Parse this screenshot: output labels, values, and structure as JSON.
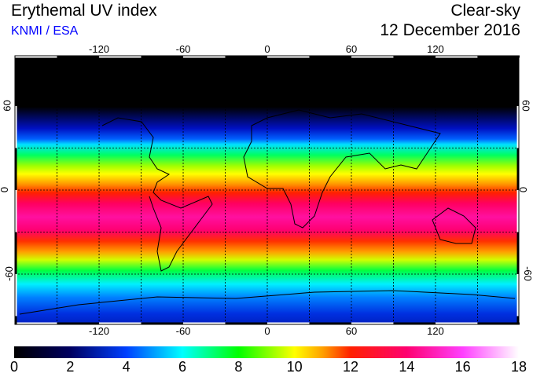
{
  "header": {
    "title": "Erythemal UV index",
    "source": "KNMI / ESA",
    "mode": "Clear-sky",
    "date": "12 December 2016"
  },
  "map": {
    "lon_ticks": [
      "-120",
      "-60",
      "0",
      "60",
      "120"
    ],
    "lat_ticks": [
      "60",
      "0",
      "-60"
    ]
  },
  "colorbar": {
    "labels": [
      "0",
      "2",
      "4",
      "6",
      "8",
      "10",
      "12",
      "14",
      "16",
      "18"
    ],
    "range": [
      0,
      18
    ],
    "stops": [
      {
        "v": 0,
        "c": "#000000"
      },
      {
        "v": 2,
        "c": "#000060"
      },
      {
        "v": 4,
        "c": "#0040ff"
      },
      {
        "v": 6,
        "c": "#00ffff"
      },
      {
        "v": 8,
        "c": "#00ff00"
      },
      {
        "v": 10,
        "c": "#ffff00"
      },
      {
        "v": 11,
        "c": "#ffa000"
      },
      {
        "v": 12,
        "c": "#ff2000"
      },
      {
        "v": 14,
        "c": "#ff0070"
      },
      {
        "v": 16,
        "c": "#ff40ff"
      },
      {
        "v": 18,
        "c": "#ffffff"
      }
    ]
  }
}
